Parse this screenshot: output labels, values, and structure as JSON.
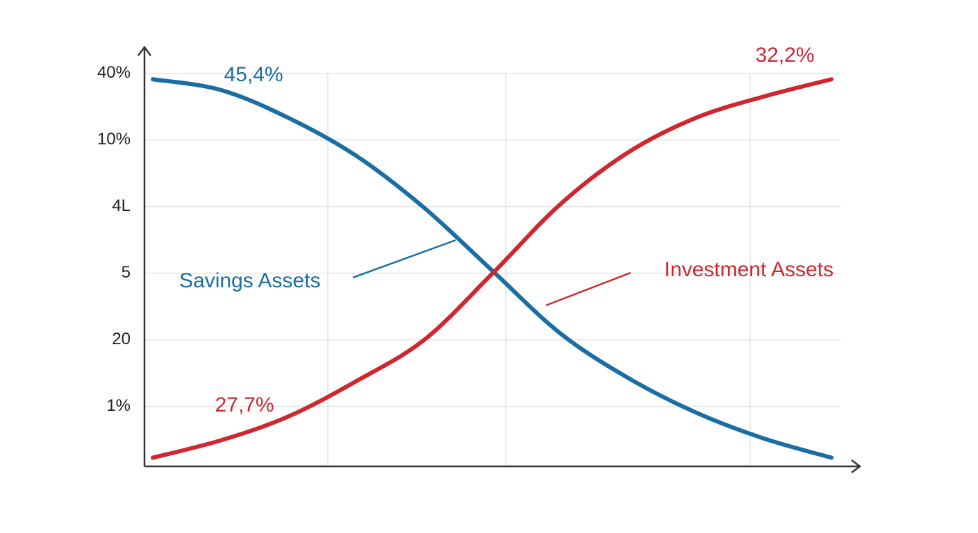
{
  "chart_data": {
    "type": "line",
    "x": [
      0,
      1,
      2,
      3,
      4,
      5,
      6,
      7,
      8,
      9,
      10
    ],
    "xlim": [
      0,
      10
    ],
    "ylim": [
      0.1,
      6.5
    ],
    "yticks": [
      {
        "value": 1,
        "label": "1%"
      },
      {
        "value": 2,
        "label": "20"
      },
      {
        "value": 3,
        "label": "5"
      },
      {
        "value": 4,
        "label": "4L"
      },
      {
        "value": 5,
        "label": "10%"
      },
      {
        "value": 6,
        "label": "40%"
      }
    ],
    "grid": true,
    "series": [
      {
        "name": "Savings Assets",
        "color": "#1a6ea3",
        "values": [
          5.91,
          5.75,
          5.33,
          4.76,
          3.98,
          3.04,
          2.1,
          1.43,
          0.91,
          0.52,
          0.23
        ]
      },
      {
        "name": "Investment Assets",
        "color": "#d0262f",
        "values": [
          0.23,
          0.49,
          0.85,
          1.38,
          2.0,
          2.99,
          4.03,
          4.81,
          5.33,
          5.65,
          5.91
        ]
      }
    ],
    "annotations": [
      {
        "text": "45,4%",
        "color": "#1a6ea3"
      },
      {
        "text": "32,2%",
        "color": "#d0262f"
      },
      {
        "text": "27,7%",
        "color": "#d0262f"
      }
    ]
  }
}
